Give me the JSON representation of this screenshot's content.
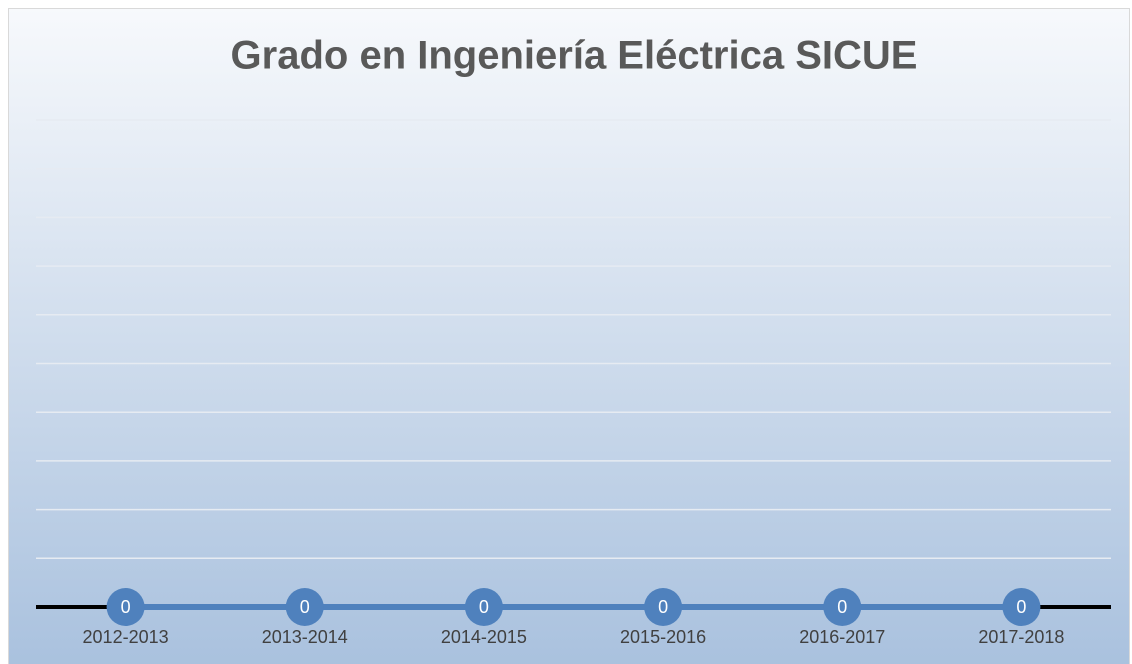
{
  "chart_data": {
    "type": "line",
    "title": "Grado en Ingeniería Eléctrica SICUE",
    "categories": [
      "2012-2013",
      "2013-2014",
      "2014-2015",
      "2015-2016",
      "2016-2017",
      "2017-2018"
    ],
    "values": [
      0,
      0,
      0,
      0,
      0,
      0
    ],
    "color": "#4f81bd",
    "ylim": [
      0,
      1
    ],
    "yticks": [
      0.1,
      0.2,
      0.3,
      0.4,
      0.5,
      0.6,
      0.7,
      0.8,
      0.9,
      1
    ],
    "grid": true
  }
}
